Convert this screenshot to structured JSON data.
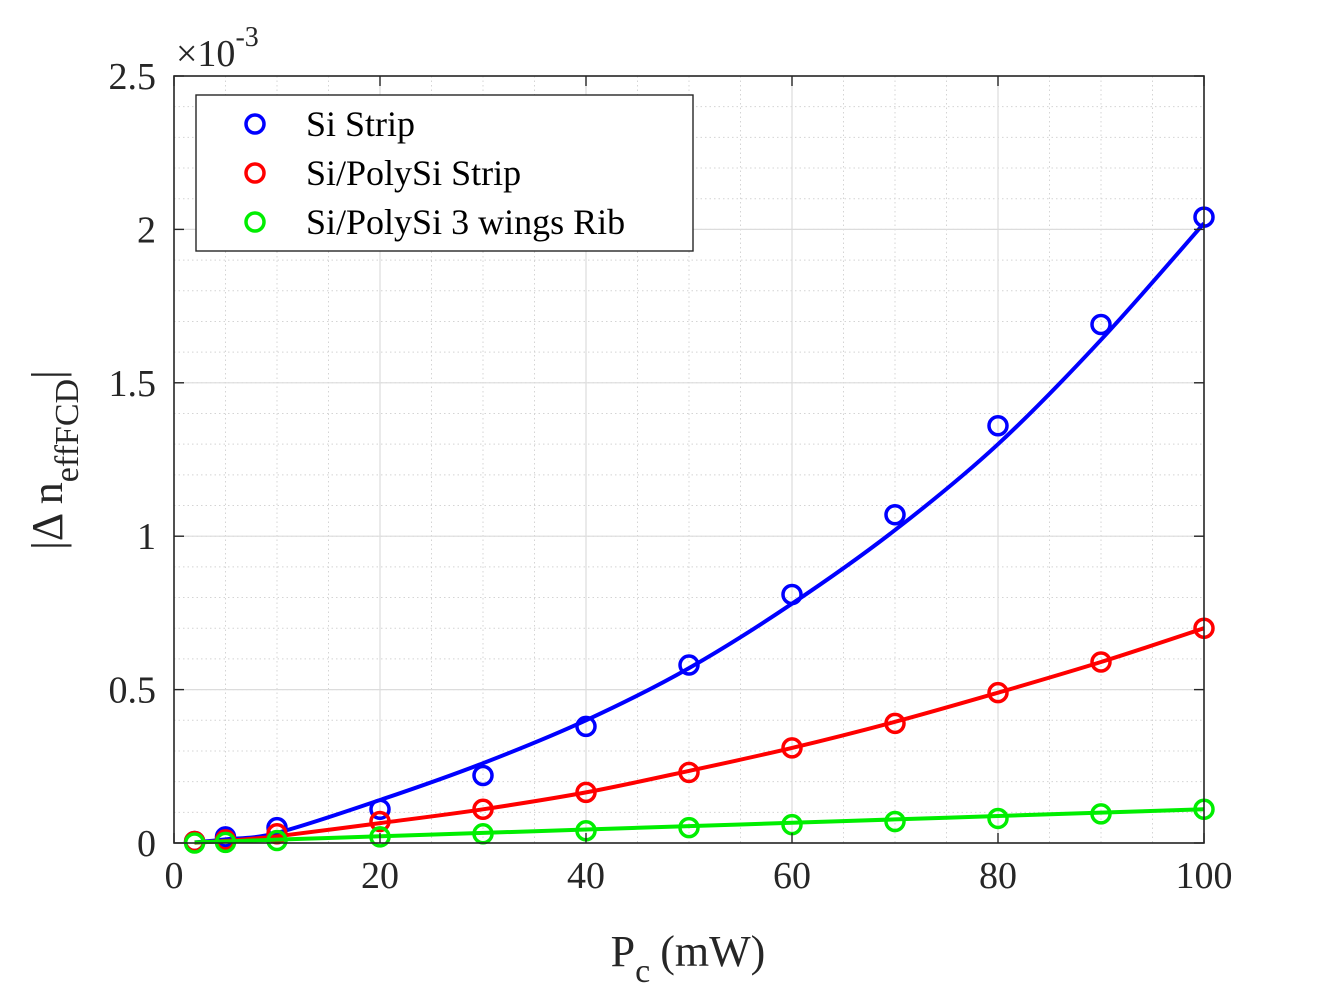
{
  "chart_data": {
    "type": "line",
    "title": "",
    "xlabel": "P",
    "xlabel_sub": "c",
    "xlabel_unit": "(mW)",
    "ylabel_left": "|Δ n",
    "ylabel_sub": "effFCD",
    "ylabel_right": "|",
    "exponent_label": "×10",
    "exponent_power": "-3",
    "xlim": [
      0,
      100
    ],
    "ylim": [
      0,
      2.5
    ],
    "xticks": [
      0,
      20,
      40,
      60,
      80,
      100
    ],
    "xtick_labels": [
      "0",
      "20",
      "40",
      "60",
      "80",
      "100"
    ],
    "yticks": [
      0,
      0.5,
      1,
      1.5,
      2,
      2.5
    ],
    "ytick_labels": [
      "0",
      "0.5",
      "1",
      "1.5",
      "2",
      "2.5"
    ],
    "grid": true,
    "legend_position": "top-left",
    "x": [
      2,
      5,
      10,
      20,
      30,
      40,
      50,
      60,
      70,
      80,
      90,
      100
    ],
    "series": [
      {
        "name": "Si Strip",
        "color": "#0000ff",
        "values": [
          0.005,
          0.02,
          0.05,
          0.11,
          0.22,
          0.38,
          0.58,
          0.81,
          1.07,
          1.36,
          1.69,
          2.04
        ],
        "fit_values": [
          0.002,
          0.012,
          0.033,
          0.14,
          0.26,
          0.4,
          0.57,
          0.78,
          1.02,
          1.3,
          1.64,
          2.02
        ]
      },
      {
        "name": "Si/PolySi Strip",
        "color": "#ff0000",
        "values": [
          0.005,
          0.01,
          0.03,
          0.07,
          0.11,
          0.165,
          0.23,
          0.31,
          0.39,
          0.49,
          0.59,
          0.7
        ],
        "fit_values": [
          0.001,
          0.007,
          0.022,
          0.065,
          0.11,
          0.165,
          0.235,
          0.31,
          0.395,
          0.49,
          0.59,
          0.7
        ]
      },
      {
        "name": "Si/PolySi 3 wings Rib",
        "color": "#00ee00",
        "values": [
          0.0,
          0.002,
          0.008,
          0.02,
          0.03,
          0.04,
          0.05,
          0.06,
          0.07,
          0.08,
          0.095,
          0.11
        ],
        "fit_values": [
          0.002,
          0.005,
          0.011,
          0.022,
          0.033,
          0.044,
          0.055,
          0.066,
          0.077,
          0.088,
          0.099,
          0.11
        ]
      }
    ]
  }
}
